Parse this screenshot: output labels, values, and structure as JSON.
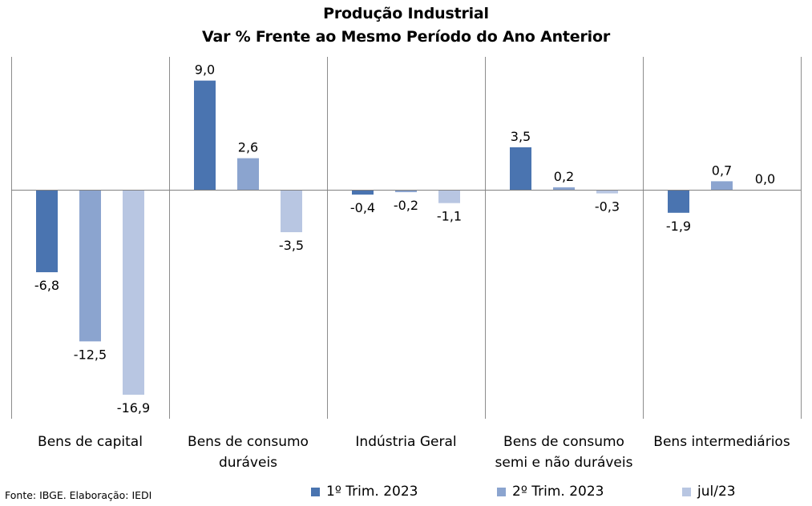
{
  "chart_data": {
    "type": "bar",
    "title": "Produção Industrial",
    "subtitle": "Var % Frente ao Mesmo Período do Ano Anterior",
    "categories": [
      [
        "Bens de capital"
      ],
      [
        "Bens de consumo",
        "duráveis"
      ],
      [
        "Indústria Geral"
      ],
      [
        "Bens de consumo",
        "semi e não duráveis"
      ],
      [
        "Bens intermediários"
      ]
    ],
    "series": [
      {
        "name": "1º Trim. 2023",
        "color": "#4a74b0",
        "values": [
          -6.8,
          9.0,
          -0.4,
          3.5,
          -1.9
        ],
        "labels": [
          "-6,8",
          "9,0",
          "-0,4",
          "3,5",
          "-1,9"
        ]
      },
      {
        "name": "2º Trim. 2023",
        "color": "#8ba4cf",
        "values": [
          -12.5,
          2.6,
          -0.2,
          0.2,
          0.7
        ],
        "labels": [
          "-12,5",
          "2,6",
          "-0,2",
          "0,2",
          "0,7"
        ]
      },
      {
        "name": "jul/23",
        "color": "#b8c6e2",
        "values": [
          -16.9,
          -3.5,
          -1.1,
          -0.3,
          0.0
        ],
        "labels": [
          "-16,9",
          "-3,5",
          "-1,1",
          "-0,3",
          "0,0"
        ]
      }
    ],
    "grid": false,
    "legend": "bottom"
  },
  "source": "Fonte: IBGE. Elaboração: IEDI"
}
